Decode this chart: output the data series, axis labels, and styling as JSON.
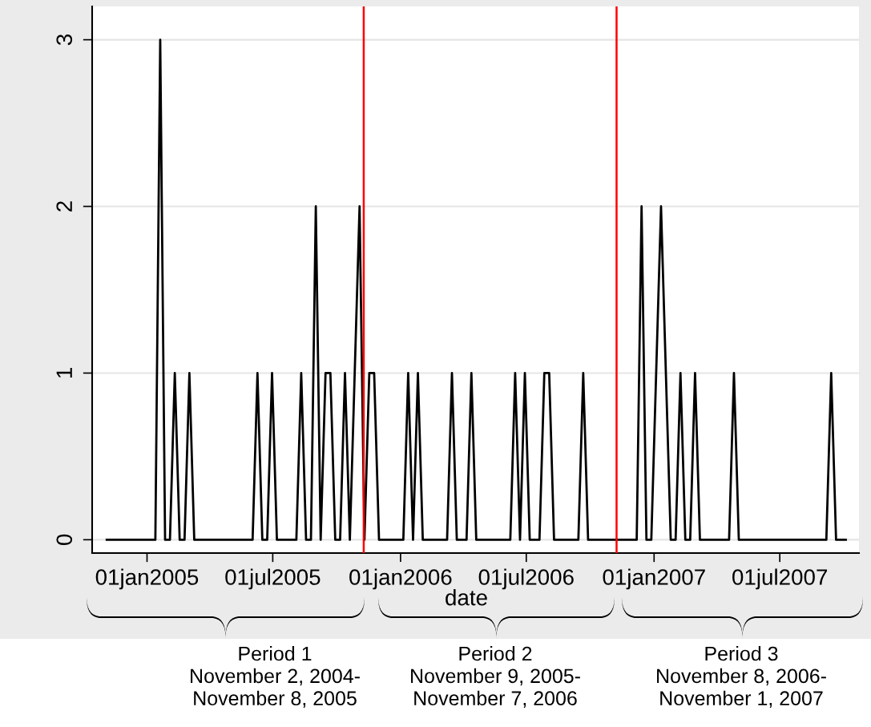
{
  "chart_data": {
    "type": "line",
    "xlabel": "date",
    "x": [
      "2004-11-04",
      "2005-01-13",
      "2005-01-20",
      "2005-01-27",
      "2005-02-03",
      "2005-02-10",
      "2005-02-17",
      "2005-02-24",
      "2005-03-03",
      "2005-03-10",
      "2005-06-02",
      "2005-06-09",
      "2005-06-16",
      "2005-06-23",
      "2005-06-30",
      "2005-07-07",
      "2005-08-04",
      "2005-08-11",
      "2005-08-18",
      "2005-08-25",
      "2005-09-01",
      "2005-09-08",
      "2005-09-15",
      "2005-09-22",
      "2005-09-29",
      "2005-10-06",
      "2005-10-13",
      "2005-10-20",
      "2005-11-03",
      "2005-11-10",
      "2005-11-17",
      "2005-11-24",
      "2005-12-01",
      "2006-01-05",
      "2006-01-12",
      "2006-01-19",
      "2006-01-26",
      "2006-02-02",
      "2006-03-09",
      "2006-03-16",
      "2006-03-23",
      "2006-04-06",
      "2006-04-13",
      "2006-04-20",
      "2006-06-08",
      "2006-06-15",
      "2006-06-22",
      "2006-06-29",
      "2006-07-06",
      "2006-07-20",
      "2006-07-27",
      "2006-08-03",
      "2006-08-10",
      "2006-09-14",
      "2006-09-21",
      "2006-09-28",
      "2006-12-07",
      "2006-12-14",
      "2006-12-21",
      "2006-12-28",
      "2007-01-11",
      "2007-01-25",
      "2007-02-01",
      "2007-02-08",
      "2007-02-15",
      "2007-02-22",
      "2007-03-01",
      "2007-03-08",
      "2007-04-19",
      "2007-04-26",
      "2007-05-03",
      "2007-09-06",
      "2007-09-13",
      "2007-09-20",
      "2007-10-04"
    ],
    "series": [
      {
        "color": "#000000",
        "values": [
          0,
          0,
          3,
          0,
          0,
          1,
          0,
          0,
          1,
          0,
          0,
          1,
          0,
          0,
          1,
          0,
          0,
          1,
          0,
          0,
          2,
          0,
          1,
          1,
          0,
          0,
          1,
          0,
          2,
          0,
          1,
          1,
          0,
          0,
          1,
          0,
          1,
          0,
          0,
          1,
          0,
          0,
          1,
          0,
          0,
          1,
          0,
          1,
          0,
          0,
          1,
          1,
          0,
          0,
          1,
          0,
          0,
          2,
          0,
          0,
          2,
          0,
          0,
          1,
          0,
          0,
          1,
          0,
          0,
          1,
          0,
          0,
          1,
          0,
          0
        ]
      }
    ],
    "xlim": [
      "2004-10-14",
      "2007-10-23"
    ],
    "xticks": [
      {
        "value": "2005-01-01",
        "label": "01jan2005"
      },
      {
        "value": "2005-07-01",
        "label": "01jul2005"
      },
      {
        "value": "2006-01-01",
        "label": "01jan2006"
      },
      {
        "value": "2006-07-01",
        "label": "01jul2006"
      },
      {
        "value": "2007-01-01",
        "label": "01jan2007"
      },
      {
        "value": "2007-07-01",
        "label": "01jul2007"
      }
    ],
    "ylim": [
      -0.08,
      3.2
    ],
    "yticks": [
      0,
      1,
      2,
      3
    ],
    "grid": "y",
    "ref_lines": [
      {
        "axis": "x",
        "value": "2005-11-09",
        "color": "#ff0000"
      },
      {
        "axis": "x",
        "value": "2006-11-08",
        "color": "#ff0000"
      }
    ],
    "annotations": [
      "Period 1\nNovember 2, 2004-\nNovember 8, 2005",
      "Period 2\nNovember 9, 2005-\nNovember 7, 2006",
      "Period 3\nNovember 8, 2006-\nNovember 1, 2007"
    ]
  }
}
